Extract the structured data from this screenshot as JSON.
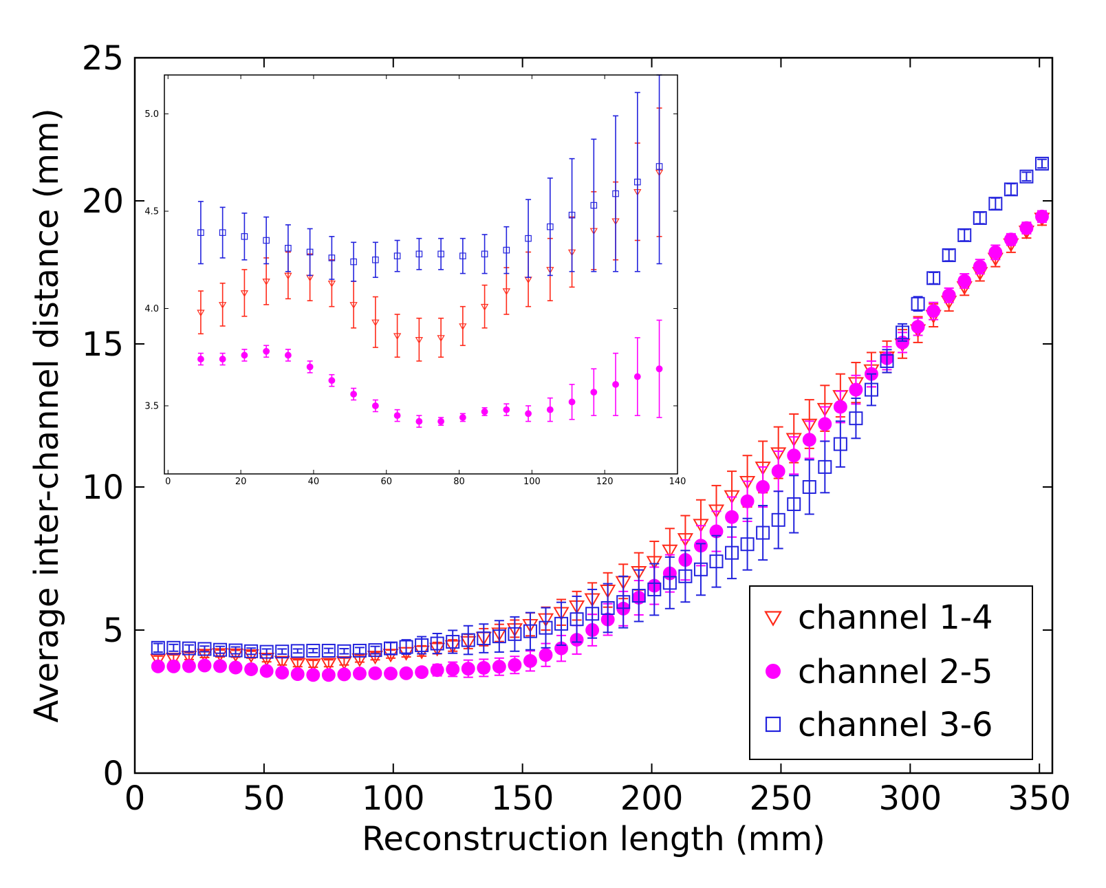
{
  "chart_data": [
    {
      "type": "scatter",
      "xlabel": "Reconstruction length (mm)",
      "ylabel": "Average inter-channel distance (mm)",
      "xlim": [
        0,
        355
      ],
      "ylim": [
        0,
        25
      ],
      "xticks": [
        "0",
        "50",
        "100",
        "150",
        "200",
        "250",
        "300",
        "350"
      ],
      "yticks": [
        "0",
        "5",
        "10",
        "15",
        "20",
        "25"
      ],
      "grid": false,
      "legend": "bottom-right",
      "x": [
        9,
        15,
        21,
        27,
        33,
        39,
        45,
        51,
        57,
        63,
        69,
        75,
        81,
        87,
        93,
        99,
        105,
        111,
        117,
        123,
        129,
        135,
        141,
        147,
        153,
        159,
        165,
        171,
        177,
        183,
        189,
        195,
        201,
        207,
        213,
        219,
        225,
        231,
        237,
        243,
        249,
        255,
        261,
        267,
        273,
        279,
        285,
        291,
        297,
        303,
        309,
        315,
        321,
        327,
        333,
        339,
        345,
        351
      ],
      "series": [
        {
          "name": "channel 1-4",
          "marker": "triangle-down-open",
          "color": "#ff2a1a",
          "values": [
            3.98,
            4.02,
            4.09,
            4.16,
            4.18,
            4.17,
            4.14,
            4.02,
            3.91,
            3.84,
            3.82,
            3.84,
            3.9,
            4.0,
            4.09,
            4.16,
            4.22,
            4.27,
            4.37,
            4.46,
            4.6,
            4.75,
            4.9,
            5.05,
            5.2,
            5.4,
            5.62,
            5.85,
            6.1,
            6.4,
            6.7,
            7.05,
            7.4,
            7.8,
            8.2,
            8.7,
            9.2,
            9.7,
            10.2,
            10.7,
            11.2,
            11.7,
            12.2,
            12.75,
            13.2,
            13.65,
            14.1,
            14.55,
            15.0,
            15.5,
            16.0,
            16.5,
            17.0,
            17.5,
            18.0,
            18.5,
            18.95,
            19.4
          ],
          "errors": [
            0.11,
            0.11,
            0.12,
            0.12,
            0.12,
            0.12,
            0.12,
            0.13,
            0.13,
            0.12,
            0.12,
            0.12,
            0.12,
            0.12,
            0.13,
            0.14,
            0.16,
            0.18,
            0.2,
            0.2,
            0.25,
            0.3,
            0.3,
            0.3,
            0.4,
            0.4,
            0.45,
            0.5,
            0.55,
            0.6,
            0.6,
            0.65,
            0.7,
            0.75,
            0.8,
            0.85,
            0.85,
            0.85,
            0.9,
            0.9,
            0.9,
            0.85,
            0.85,
            0.8,
            0.75,
            0.7,
            0.6,
            0.55,
            0.5,
            0.45,
            0.4,
            0.35,
            0.3,
            0.3,
            0.3,
            0.3,
            0.25,
            0.25
          ]
        },
        {
          "name": "channel 2-5",
          "marker": "circle-filled",
          "color": "#ff00ff",
          "values": [
            3.73,
            3.73,
            3.74,
            3.76,
            3.74,
            3.69,
            3.63,
            3.57,
            3.51,
            3.46,
            3.43,
            3.43,
            3.45,
            3.48,
            3.49,
            3.48,
            3.49,
            3.53,
            3.6,
            3.63,
            3.65,
            3.68,
            3.72,
            3.78,
            3.92,
            4.13,
            4.36,
            4.66,
            5.0,
            5.37,
            5.75,
            6.13,
            6.55,
            6.98,
            7.45,
            7.95,
            8.45,
            8.95,
            9.5,
            10.0,
            10.55,
            11.1,
            11.65,
            12.2,
            12.8,
            13.4,
            13.95,
            14.5,
            15.05,
            15.6,
            16.15,
            16.7,
            17.2,
            17.7,
            18.2,
            18.65,
            19.05,
            19.45
          ],
          "errors": [
            0.04,
            0.04,
            0.04,
            0.04,
            0.04,
            0.04,
            0.04,
            0.04,
            0.04,
            0.04,
            0.04,
            0.02,
            0.02,
            0.03,
            0.05,
            0.07,
            0.1,
            0.15,
            0.2,
            0.25,
            0.3,
            0.3,
            0.3,
            0.3,
            0.35,
            0.4,
            0.45,
            0.5,
            0.55,
            0.55,
            0.6,
            0.6,
            0.65,
            0.65,
            0.7,
            0.7,
            0.7,
            0.7,
            0.7,
            0.7,
            0.7,
            0.65,
            0.65,
            0.6,
            0.55,
            0.5,
            0.45,
            0.4,
            0.35,
            0.3,
            0.3,
            0.25,
            0.25,
            0.25,
            0.25,
            0.2,
            0.2,
            0.2
          ]
        },
        {
          "name": "channel 3-6",
          "marker": "square-open",
          "color": "#2222dd",
          "values": [
            4.38,
            4.38,
            4.36,
            4.34,
            4.31,
            4.29,
            4.26,
            4.24,
            4.25,
            4.27,
            4.28,
            4.28,
            4.26,
            4.28,
            4.3,
            4.36,
            4.41,
            4.47,
            4.53,
            4.59,
            4.65,
            4.71,
            4.78,
            4.86,
            4.96,
            5.08,
            5.22,
            5.38,
            5.57,
            5.77,
            5.98,
            6.2,
            6.42,
            6.65,
            6.88,
            7.12,
            7.4,
            7.7,
            8.0,
            8.4,
            8.85,
            9.4,
            10.0,
            10.7,
            11.5,
            12.4,
            13.4,
            14.4,
            15.4,
            16.4,
            17.3,
            18.1,
            18.8,
            19.4,
            19.9,
            20.4,
            20.85,
            21.3
          ],
          "errors": [
            0.15,
            0.12,
            0.12,
            0.1,
            0.12,
            0.12,
            0.11,
            0.1,
            0.09,
            0.07,
            0.07,
            0.08,
            0.09,
            0.11,
            0.13,
            0.2,
            0.25,
            0.3,
            0.35,
            0.4,
            0.5,
            0.5,
            0.55,
            0.6,
            0.65,
            0.7,
            0.75,
            0.8,
            0.85,
            0.85,
            0.9,
            0.9,
            0.9,
            0.9,
            0.9,
            0.9,
            0.9,
            0.9,
            0.9,
            0.95,
            1.0,
            1.0,
            0.95,
            0.9,
            0.8,
            0.7,
            0.55,
            0.4,
            0.3,
            0.25,
            0.2,
            0.2,
            0.2,
            0.2,
            0.2,
            0.2,
            0.15,
            0.15
          ]
        }
      ]
    },
    {
      "type": "scatter",
      "xlabel": "",
      "ylabel": "",
      "xlim": [
        -1,
        140
      ],
      "ylim": [
        3.15,
        5.2
      ],
      "xticks": [
        "0",
        "20",
        "40",
        "60",
        "80",
        "100",
        "120",
        "140"
      ],
      "yticks": [
        "3.5",
        "4.0",
        "4.5",
        "5.0"
      ],
      "grid": false,
      "x": [
        9,
        15,
        21,
        27,
        33,
        39,
        45,
        51,
        57,
        63,
        69,
        75,
        81,
        87,
        93,
        99,
        105,
        111,
        117,
        123,
        129,
        135
      ],
      "series": [
        {
          "marker": "triangle-down-open",
          "color": "#ff2a1a",
          "values": [
            3.98,
            4.02,
            4.08,
            4.14,
            4.17,
            4.16,
            4.13,
            4.02,
            3.93,
            3.86,
            3.84,
            3.85,
            3.91,
            4.01,
            4.09,
            4.15,
            4.2,
            4.29,
            4.4,
            4.45,
            4.6,
            4.7
          ],
          "errors": [
            0.11,
            0.11,
            0.12,
            0.12,
            0.12,
            0.12,
            0.12,
            0.12,
            0.13,
            0.11,
            0.11,
            0.1,
            0.1,
            0.11,
            0.12,
            0.14,
            0.16,
            0.18,
            0.2,
            0.2,
            0.25,
            0.33
          ]
        },
        {
          "marker": "circle-filled",
          "color": "#ff00ff",
          "values": [
            3.74,
            3.74,
            3.76,
            3.78,
            3.76,
            3.7,
            3.63,
            3.56,
            3.5,
            3.45,
            3.42,
            3.42,
            3.44,
            3.47,
            3.48,
            3.46,
            3.48,
            3.52,
            3.57,
            3.61,
            3.65,
            3.69
          ],
          "errors": [
            0.03,
            0.03,
            0.03,
            0.03,
            0.03,
            0.03,
            0.03,
            0.03,
            0.03,
            0.03,
            0.03,
            0.02,
            0.02,
            0.02,
            0.03,
            0.04,
            0.06,
            0.09,
            0.12,
            0.16,
            0.2,
            0.25
          ]
        },
        {
          "marker": "square-open",
          "color": "#2222dd",
          "values": [
            4.39,
            4.39,
            4.37,
            4.35,
            4.31,
            4.29,
            4.26,
            4.24,
            4.25,
            4.27,
            4.28,
            4.28,
            4.27,
            4.28,
            4.3,
            4.36,
            4.42,
            4.48,
            4.53,
            4.59,
            4.65,
            4.73
          ],
          "errors": [
            0.16,
            0.13,
            0.12,
            0.12,
            0.12,
            0.12,
            0.11,
            0.1,
            0.09,
            0.08,
            0.08,
            0.08,
            0.09,
            0.1,
            0.12,
            0.2,
            0.25,
            0.29,
            0.34,
            0.4,
            0.46,
            0.5
          ]
        }
      ]
    }
  ]
}
